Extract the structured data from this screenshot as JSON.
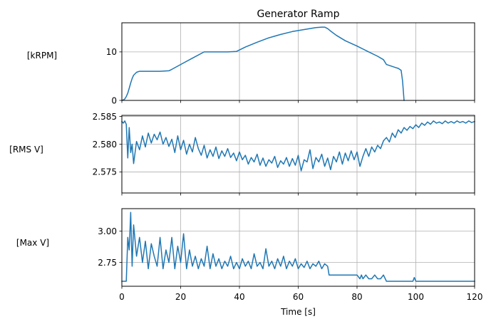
{
  "chart_data": [
    {
      "type": "line",
      "title": "Generator Ramp",
      "xlabel": "",
      "ylabel": "[kRPM]",
      "xlim": [
        0,
        120
      ],
      "ylim": [
        0,
        16
      ],
      "xticks": [
        0,
        20,
        40,
        60,
        80,
        100,
        120
      ],
      "yticks": [
        0,
        10
      ],
      "ytick_labels": [
        "0",
        "10"
      ],
      "grid": true,
      "color": "#1f77b4",
      "series": [
        {
          "x": [
            0,
            0.5,
            1,
            1.5,
            2,
            2.5,
            3,
            3.5,
            4,
            5,
            6,
            7,
            10,
            13,
            16,
            17,
            20,
            24,
            28,
            32,
            36,
            39,
            42,
            46,
            50,
            54,
            58,
            62,
            66,
            68,
            69,
            70,
            71,
            73,
            76,
            80,
            84,
            87,
            89,
            90,
            92,
            93,
            94,
            95,
            95.5,
            96
          ],
          "y": [
            0,
            0.1,
            0.3,
            0.8,
            1.5,
            2.5,
            3.6,
            4.5,
            5.2,
            5.8,
            6.0,
            6.0,
            6.0,
            6.0,
            6.1,
            6.4,
            7.4,
            8.7,
            10.0,
            10.0,
            10.0,
            10.1,
            11.0,
            12.0,
            12.9,
            13.6,
            14.2,
            14.6,
            15.0,
            15.1,
            15.1,
            14.8,
            14.3,
            13.4,
            12.3,
            11.2,
            10.0,
            9.1,
            8.4,
            7.4,
            7.0,
            6.8,
            6.6,
            6.2,
            4.0,
            0
          ]
        }
      ]
    },
    {
      "type": "line",
      "title": "",
      "xlabel": "",
      "ylabel": "[RMS V]",
      "xlim": [
        0,
        120
      ],
      "ylim": [
        2.5712,
        2.5852
      ],
      "xticks": [
        0,
        20,
        40,
        60,
        80,
        100,
        120
      ],
      "yticks": [
        2.575,
        2.58,
        2.585
      ],
      "ytick_labels": [
        "2.575",
        "2.580",
        "2.585"
      ],
      "grid": true,
      "color": "#1f77b4",
      "series": [
        {
          "x": [
            0,
            0.5,
            1,
            1.5,
            2,
            2.5,
            3,
            3.5,
            4,
            5,
            6,
            7,
            8,
            9,
            10,
            11,
            12,
            13,
            14,
            15,
            16,
            17,
            18,
            19,
            20,
            21,
            22,
            23,
            24,
            25,
            26,
            27,
            28,
            29,
            30,
            31,
            32,
            33,
            34,
            35,
            36,
            37,
            38,
            39,
            40,
            41,
            42,
            43,
            44,
            45,
            46,
            47,
            48,
            49,
            50,
            51,
            52,
            53,
            54,
            55,
            56,
            57,
            58,
            59,
            60,
            61,
            62,
            63,
            64,
            65,
            66,
            67,
            68,
            69,
            70,
            71,
            72,
            73,
            74,
            75,
            76,
            77,
            78,
            79,
            80,
            81,
            82,
            83,
            84,
            85,
            86,
            87,
            88,
            89,
            90,
            91,
            92,
            93,
            94,
            95,
            96,
            97,
            98,
            99,
            100,
            101,
            102,
            103,
            104,
            105,
            106,
            107,
            108,
            109,
            110,
            111,
            112,
            113,
            114,
            115,
            116,
            117,
            118,
            119,
            120
          ],
          "y": [
            2.5841,
            2.5838,
            2.5842,
            2.5836,
            2.5775,
            2.583,
            2.5785,
            2.58,
            2.5765,
            2.5805,
            2.579,
            2.5815,
            2.5795,
            2.582,
            2.5802,
            2.5818,
            2.5808,
            2.5822,
            2.58,
            2.5812,
            2.5796,
            2.5809,
            2.5785,
            2.5815,
            2.579,
            2.5807,
            2.5782,
            2.58,
            2.5786,
            2.5812,
            2.5792,
            2.578,
            2.5798,
            2.5775,
            2.579,
            2.5778,
            2.5795,
            2.5774,
            2.5788,
            2.5778,
            2.5792,
            2.5776,
            2.5784,
            2.577,
            2.5786,
            2.5772,
            2.578,
            2.5764,
            2.5776,
            2.5768,
            2.5782,
            2.5762,
            2.5775,
            2.576,
            2.5772,
            2.5766,
            2.5778,
            2.5758,
            2.577,
            2.5764,
            2.5776,
            2.576,
            2.5774,
            2.5762,
            2.578,
            2.5752,
            2.5772,
            2.5768,
            2.579,
            2.5756,
            2.5776,
            2.5768,
            2.5782,
            2.576,
            2.5775,
            2.5754,
            2.5778,
            2.5768,
            2.5786,
            2.5764,
            2.5784,
            2.577,
            2.5788,
            2.5772,
            2.5786,
            2.576,
            2.5778,
            2.5792,
            2.5778,
            2.5795,
            2.5786,
            2.5798,
            2.5792,
            2.5806,
            2.5812,
            2.5804,
            2.582,
            2.5812,
            2.5826,
            2.582,
            2.583,
            2.5825,
            2.5832,
            2.5828,
            2.5835,
            2.583,
            2.5838,
            2.5834,
            2.584,
            2.5836,
            2.5842,
            2.5838,
            2.584,
            2.5837,
            2.5842,
            2.5838,
            2.5841,
            2.5838,
            2.5842,
            2.5839,
            2.5841,
            2.5838,
            2.5842,
            2.5839,
            2.5841
          ]
        }
      ]
    },
    {
      "type": "line",
      "title": "",
      "xlabel": "Time [s]",
      "ylabel": "[Max V]",
      "xlim": [
        0,
        120
      ],
      "ylim": [
        2.56,
        3.18
      ],
      "xticks": [
        0,
        20,
        40,
        60,
        80,
        100,
        120
      ],
      "xtick_labels": [
        "0",
        "20",
        "40",
        "60",
        "80",
        "100",
        "120"
      ],
      "yticks": [
        2.75,
        3.0
      ],
      "ytick_labels": [
        "2.75",
        "3.00"
      ],
      "grid": true,
      "color": "#1f77b4",
      "series": [
        {
          "x": [
            0,
            1,
            1.5,
            2,
            2.5,
            3,
            3.5,
            4,
            5,
            6,
            7,
            8,
            9,
            10,
            11,
            12,
            13,
            14,
            15,
            16,
            17,
            18,
            19,
            20,
            21,
            22,
            23,
            24,
            25,
            26,
            27,
            28,
            29,
            30,
            31,
            32,
            33,
            34,
            35,
            36,
            37,
            38,
            39,
            40,
            41,
            42,
            43,
            44,
            45,
            46,
            47,
            48,
            49,
            50,
            51,
            52,
            53,
            54,
            55,
            56,
            57,
            58,
            59,
            60,
            61,
            62,
            63,
            64,
            65,
            66,
            67,
            68,
            69,
            70,
            70.5,
            71,
            80,
            81,
            81.5,
            82,
            83,
            84,
            85,
            86,
            87,
            88,
            89,
            90,
            99,
            99.5,
            100,
            100.5,
            120
          ],
          "y": [
            2.6,
            2.6,
            2.6,
            2.95,
            2.85,
            3.15,
            2.72,
            3.05,
            2.8,
            2.95,
            2.75,
            2.92,
            2.7,
            2.9,
            2.8,
            2.72,
            2.95,
            2.7,
            2.85,
            2.75,
            2.95,
            2.7,
            2.88,
            2.75,
            2.98,
            2.7,
            2.85,
            2.72,
            2.8,
            2.7,
            2.78,
            2.72,
            2.88,
            2.7,
            2.82,
            2.72,
            2.78,
            2.7,
            2.76,
            2.72,
            2.8,
            2.7,
            2.75,
            2.7,
            2.78,
            2.72,
            2.76,
            2.7,
            2.82,
            2.72,
            2.75,
            2.7,
            2.86,
            2.72,
            2.76,
            2.7,
            2.78,
            2.72,
            2.8,
            2.7,
            2.76,
            2.72,
            2.78,
            2.7,
            2.74,
            2.71,
            2.76,
            2.7,
            2.74,
            2.72,
            2.76,
            2.7,
            2.74,
            2.72,
            2.65,
            2.65,
            2.65,
            2.62,
            2.65,
            2.62,
            2.65,
            2.62,
            2.62,
            2.65,
            2.62,
            2.62,
            2.65,
            2.6,
            2.6,
            2.63,
            2.6,
            2.6,
            2.6
          ]
        }
      ]
    }
  ]
}
